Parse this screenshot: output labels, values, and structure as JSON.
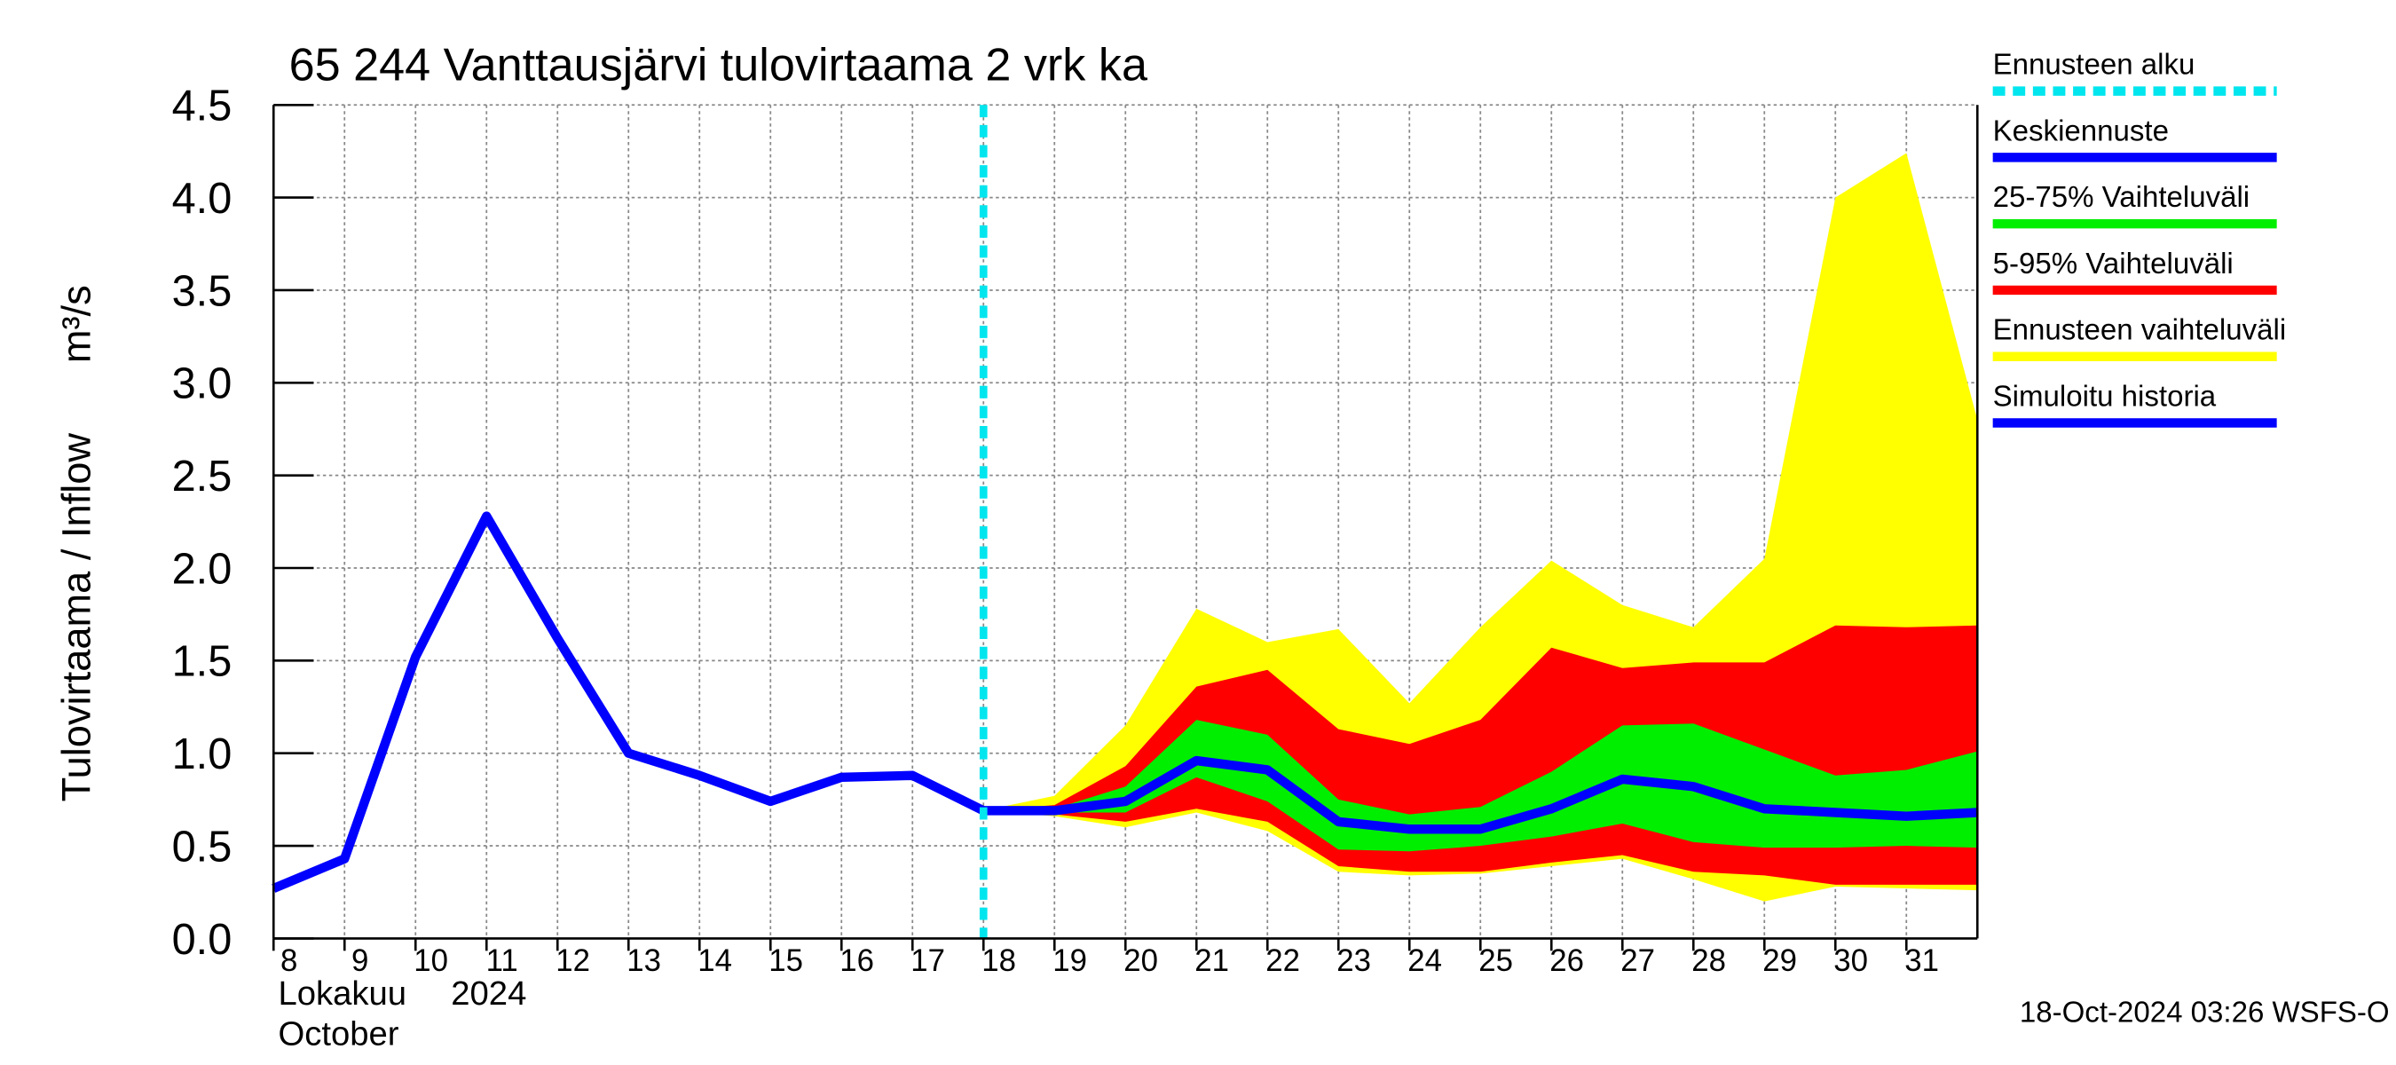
{
  "chart_data": {
    "type": "line",
    "title": "65 244 Vanttausjärvi tulovirtaama 2 vrk ka",
    "ylabel": "Tulovirtaama / Inflow",
    "yunit": "m³/s",
    "xlabel_fi": "Lokakuu",
    "xlabel_year": "2024",
    "xlabel_en": "October",
    "timestamp": "18-Oct-2024 03:26 WSFS-O",
    "x": [
      8,
      9,
      10,
      11,
      12,
      13,
      14,
      15,
      16,
      17,
      18,
      19,
      20,
      21,
      22,
      23,
      24,
      25,
      26,
      27,
      28,
      29,
      30,
      31,
      32
    ],
    "xlim": [
      8,
      32
    ],
    "xticks": [
      8,
      9,
      10,
      11,
      12,
      13,
      14,
      15,
      16,
      17,
      18,
      19,
      20,
      21,
      22,
      23,
      24,
      25,
      26,
      27,
      28,
      29,
      30,
      31
    ],
    "ylim": [
      0,
      4.5
    ],
    "yticks": [
      {
        "value": 0,
        "label": "0.0"
      },
      0.5,
      {
        "value": 1,
        "label": "1.0"
      },
      1.5,
      {
        "value": 2,
        "label": "2.0"
      },
      2.5,
      {
        "value": 3,
        "label": "3.0"
      },
      3.5,
      {
        "value": 4,
        "label": "4.0"
      },
      4.5
    ],
    "grid": true,
    "forecast_start": {
      "name": "Ennusteen alku",
      "value": 18,
      "color": "#00e5ee"
    },
    "series": [
      {
        "name": "Keskiennuste",
        "kind": "line",
        "color": "#0000ff",
        "values": [
          null,
          null,
          null,
          null,
          null,
          null,
          null,
          null,
          null,
          null,
          0.69,
          0.69,
          0.74,
          0.96,
          0.91,
          0.63,
          0.59,
          0.59,
          0.7,
          0.86,
          0.82,
          0.7,
          0.68,
          0.66,
          0.68
        ]
      },
      {
        "name": "25-75% Vaihteluväli",
        "kind": "band",
        "color": "#00ee00",
        "values": [
          null,
          null,
          null,
          null,
          null,
          null,
          null,
          null,
          null,
          null,
          0.69,
          0.7,
          0.82,
          1.18,
          1.1,
          0.75,
          0.67,
          0.71,
          0.9,
          1.15,
          1.16,
          1.02,
          0.88,
          0.91,
          1.01
        ],
        "lower": [
          null,
          null,
          null,
          null,
          null,
          null,
          null,
          null,
          null,
          null,
          0.69,
          0.68,
          0.68,
          0.87,
          0.74,
          0.48,
          0.47,
          0.5,
          0.55,
          0.62,
          0.52,
          0.49,
          0.49,
          0.5,
          0.49
        ]
      },
      {
        "name": "5-95% Vaihteluväli",
        "kind": "band",
        "color": "#ff0000",
        "values": [
          null,
          null,
          null,
          null,
          null,
          null,
          null,
          null,
          null,
          null,
          0.69,
          0.72,
          0.93,
          1.36,
          1.45,
          1.13,
          1.05,
          1.18,
          1.57,
          1.46,
          1.49,
          1.49,
          1.69,
          1.68,
          1.69
        ],
        "lower": [
          null,
          null,
          null,
          null,
          null,
          null,
          null,
          null,
          null,
          null,
          0.69,
          0.67,
          0.63,
          0.7,
          0.63,
          0.39,
          0.36,
          0.36,
          0.41,
          0.45,
          0.36,
          0.34,
          0.29,
          0.29,
          0.29
        ]
      },
      {
        "name": "Ennusteen vaihteluväli",
        "kind": "band",
        "color": "#ffff00",
        "values": [
          null,
          null,
          null,
          null,
          null,
          null,
          null,
          null,
          null,
          null,
          0.69,
          0.77,
          1.15,
          1.78,
          1.6,
          1.67,
          1.27,
          1.68,
          2.04,
          1.8,
          1.68,
          2.05,
          4.0,
          4.24,
          2.8
        ],
        "lower": [
          null,
          null,
          null,
          null,
          null,
          null,
          null,
          null,
          null,
          null,
          0.69,
          0.66,
          0.6,
          0.68,
          0.58,
          0.36,
          0.34,
          0.35,
          0.39,
          0.43,
          0.32,
          0.2,
          0.28,
          0.27,
          0.26
        ]
      },
      {
        "name": "Simuloitu historia",
        "kind": "line",
        "color": "#0000ff",
        "values": [
          0.27,
          0.43,
          1.52,
          2.28,
          1.62,
          1.0,
          0.88,
          0.74,
          0.87,
          0.88,
          0.69,
          null,
          null,
          null,
          null,
          null,
          null,
          null,
          null,
          null,
          null,
          null,
          null,
          null,
          null
        ]
      }
    ]
  }
}
